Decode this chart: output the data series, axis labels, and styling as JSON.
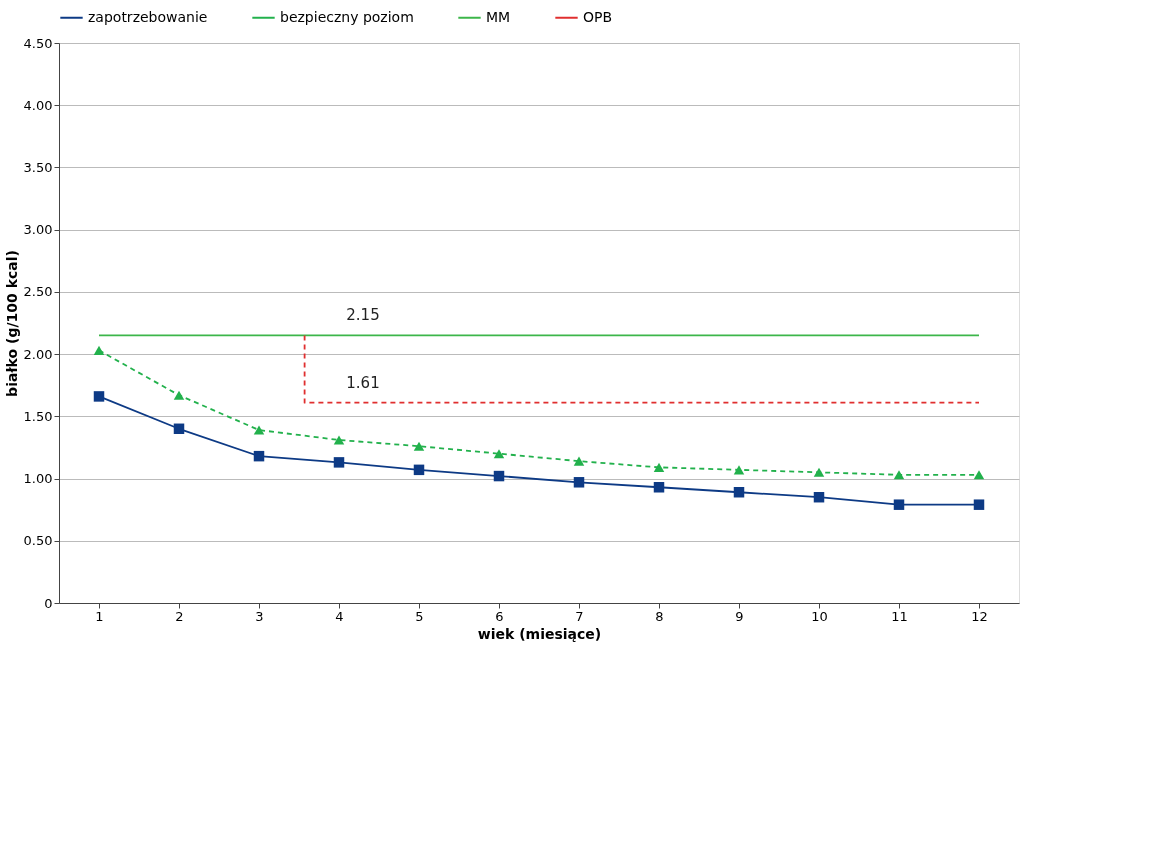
{
  "chart_data": {
    "type": "line",
    "x": [
      1,
      2,
      3,
      4,
      5,
      6,
      7,
      8,
      9,
      10,
      11,
      12
    ],
    "series": [
      {
        "name": "zapotrzebowanie",
        "color": "#0d3a85",
        "marker": "square",
        "line_style": "solid",
        "values": [
          1.66,
          1.4,
          1.18,
          1.13,
          1.07,
          1.02,
          0.97,
          0.93,
          0.89,
          0.85,
          0.79,
          0.79
        ]
      },
      {
        "name": "bezpieczny poziom",
        "color": "#22b14c",
        "marker": "triangle",
        "line_style": "dashed",
        "values": [
          2.03,
          1.67,
          1.39,
          1.31,
          1.26,
          1.2,
          1.14,
          1.09,
          1.07,
          1.05,
          1.03,
          1.03
        ]
      },
      {
        "name": "MM",
        "color": "#3cb64a",
        "marker": "none",
        "line_style": "solid",
        "x": [
          1,
          12
        ],
        "values": [
          2.15,
          2.15
        ]
      },
      {
        "name": "OPB",
        "color": "#e02f2f",
        "marker": "none",
        "line_style": "dashed",
        "x": [
          3.57,
          3.57,
          12
        ],
        "values": [
          2.15,
          1.61,
          1.61
        ]
      }
    ],
    "annotations": [
      {
        "text": "2.15",
        "x": 4.3,
        "y": 2.15
      },
      {
        "text": "1.61",
        "x": 4.3,
        "y": 1.61
      }
    ],
    "xlabel": "wiek (miesiące)",
    "ylabel": "białko (g/100 kcal)",
    "xlim": [
      0.5,
      12.5
    ],
    "xticks": [
      1,
      2,
      3,
      4,
      5,
      6,
      7,
      8,
      9,
      10,
      11,
      12
    ],
    "ylim": [
      0,
      4.5
    ],
    "yticks": [
      0,
      {
        "value": 0.5,
        "label": "0.50"
      },
      {
        "value": 1,
        "label": "1.00"
      },
      {
        "value": 1.5,
        "label": "1.50"
      },
      {
        "value": 2,
        "label": "2.00"
      },
      {
        "value": 2.5,
        "label": "2.50"
      },
      {
        "value": 3,
        "label": "3.00"
      },
      {
        "value": 3.5,
        "label": "3.50"
      },
      {
        "value": 4,
        "label": "4.00"
      },
      {
        "value": 4.5,
        "label": "4.50"
      }
    ],
    "grid": "y",
    "legend": "top"
  }
}
